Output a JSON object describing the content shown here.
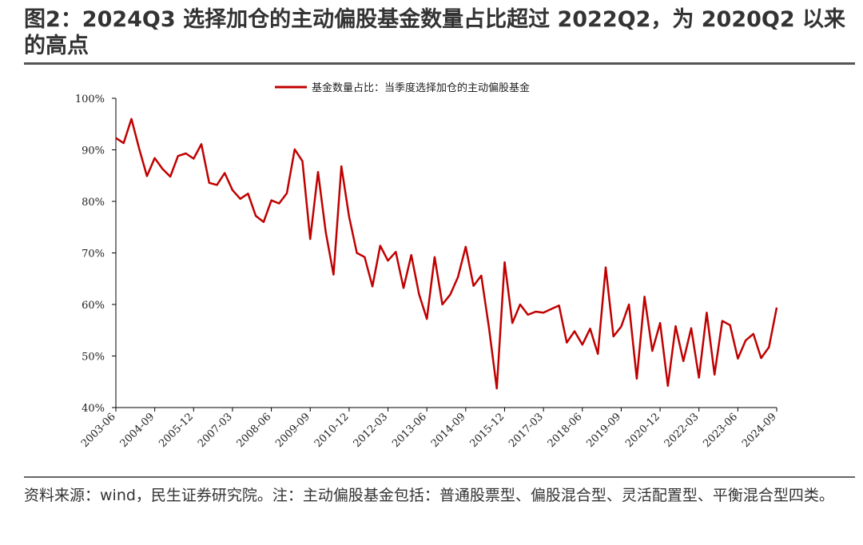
{
  "title": "图2：2024Q3 选择加仓的主动偏股基金数量占比超过 2022Q2，为 2020Q2 以来的高点",
  "footnote": "资料来源：wind，民生证券研究院。注：主动偏股基金包括：普通股票型、偏股混合型、灵活配置型、平衡混合型四类。",
  "colors": {
    "series": "#c00000",
    "axis": "#000000"
  },
  "chart_data": {
    "type": "line",
    "legend": "top-center",
    "series_name": "基金数量占比：当季度选择加仓的主动偏股基金",
    "ylim": [
      40,
      100
    ],
    "y_ticks": [
      40,
      50,
      60,
      70,
      80,
      90,
      100
    ],
    "y_tick_labels": [
      "40%",
      "50%",
      "60%",
      "70%",
      "80%",
      "90%",
      "100%"
    ],
    "x_tick_labels": [
      "2003-06",
      "2004-09",
      "2005-12",
      "2007-03",
      "2008-06",
      "2009-09",
      "2010-12",
      "2012-03",
      "2013-06",
      "2014-09",
      "2015-12",
      "2017-03",
      "2018-06",
      "2019-09",
      "2020-12",
      "2022-03",
      "2023-06",
      "2024-09"
    ],
    "x_tick_every": 5,
    "values": [
      92.3,
      91.3,
      96.0,
      90.2,
      84.9,
      88.4,
      86.3,
      84.8,
      88.8,
      89.3,
      88.3,
      91.1,
      83.6,
      83.2,
      85.5,
      82.2,
      80.5,
      81.5,
      77.2,
      76.0,
      80.2,
      79.6,
      81.6,
      90.1,
      87.8,
      72.7,
      85.7,
      74.0,
      65.8,
      86.8,
      77.0,
      70.0,
      69.2,
      63.5,
      71.4,
      68.5,
      70.2,
      63.2,
      69.6,
      62.0,
      57.2,
      69.2,
      60.0,
      61.9,
      65.3,
      71.2,
      63.6,
      65.6,
      55.4,
      43.7,
      68.2,
      56.4,
      60.0,
      58.0,
      58.6,
      58.4,
      59.1,
      59.8,
      52.6,
      54.8,
      52.2,
      55.3,
      50.4,
      67.2,
      53.8,
      55.7,
      60.0,
      45.6,
      61.5,
      51.0,
      56.4,
      44.2,
      55.8,
      49.0,
      55.4,
      45.8,
      58.4,
      46.4,
      56.8,
      56.0,
      49.5,
      53.0,
      54.3,
      49.6,
      51.7,
      59.4
    ]
  }
}
